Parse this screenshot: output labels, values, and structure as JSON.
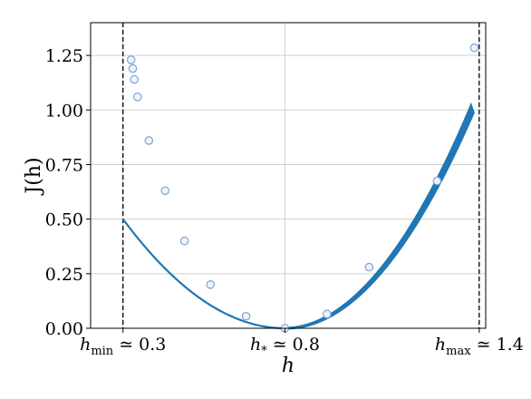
{
  "chart_data": {
    "type": "line",
    "title": "",
    "xlabel": "h",
    "ylabel": "J(h)",
    "xlim": [
      0.2,
      1.42
    ],
    "ylim": [
      0.0,
      1.4
    ],
    "grid": true,
    "y_ticks": [
      {
        "value": 0.0,
        "label": "0.00"
      },
      {
        "value": 0.25,
        "label": "0.25"
      },
      {
        "value": 0.5,
        "label": "0.50"
      },
      {
        "value": 0.75,
        "label": "0.75"
      },
      {
        "value": 1.0,
        "label": "1.00"
      },
      {
        "value": 1.25,
        "label": "1.25"
      }
    ],
    "x_ticks": [
      {
        "value": 0.3,
        "label": "h_min ≃ 0.3",
        "main": "h",
        "sub": "min",
        "rest": " ≃ 0.3"
      },
      {
        "value": 0.8,
        "label": "h_* ≃ 0.8",
        "main": "h",
        "sub": "*",
        "rest": " ≃ 0.8"
      },
      {
        "value": 1.4,
        "label": "h_max ≃ 1.4",
        "main": "h",
        "sub": "max",
        "rest": " ≃ 1.4"
      }
    ],
    "vlines": [
      0.3,
      1.4
    ],
    "curve": {
      "formula": "J = 2*(h - 0.8)^2 (left branch), J = 3*(h - 0.8)^2 (right branch)",
      "a_left": 2.0,
      "a_right": 3.0,
      "x_min": 0.3,
      "x_max": 1.38,
      "color": "#1f77b4"
    },
    "points": {
      "x": [
        0.325,
        0.33,
        0.335,
        0.345,
        0.38,
        0.43,
        0.49,
        0.57,
        0.68,
        0.8,
        0.93,
        1.06,
        1.27,
        1.385
      ],
      "y": [
        1.23,
        1.19,
        1.14,
        1.06,
        0.86,
        0.63,
        0.4,
        0.2,
        0.055,
        0.0,
        0.065,
        0.28,
        0.675,
        1.285
      ],
      "fill": "#eef3fb",
      "stroke": "#7ea1d6"
    }
  }
}
